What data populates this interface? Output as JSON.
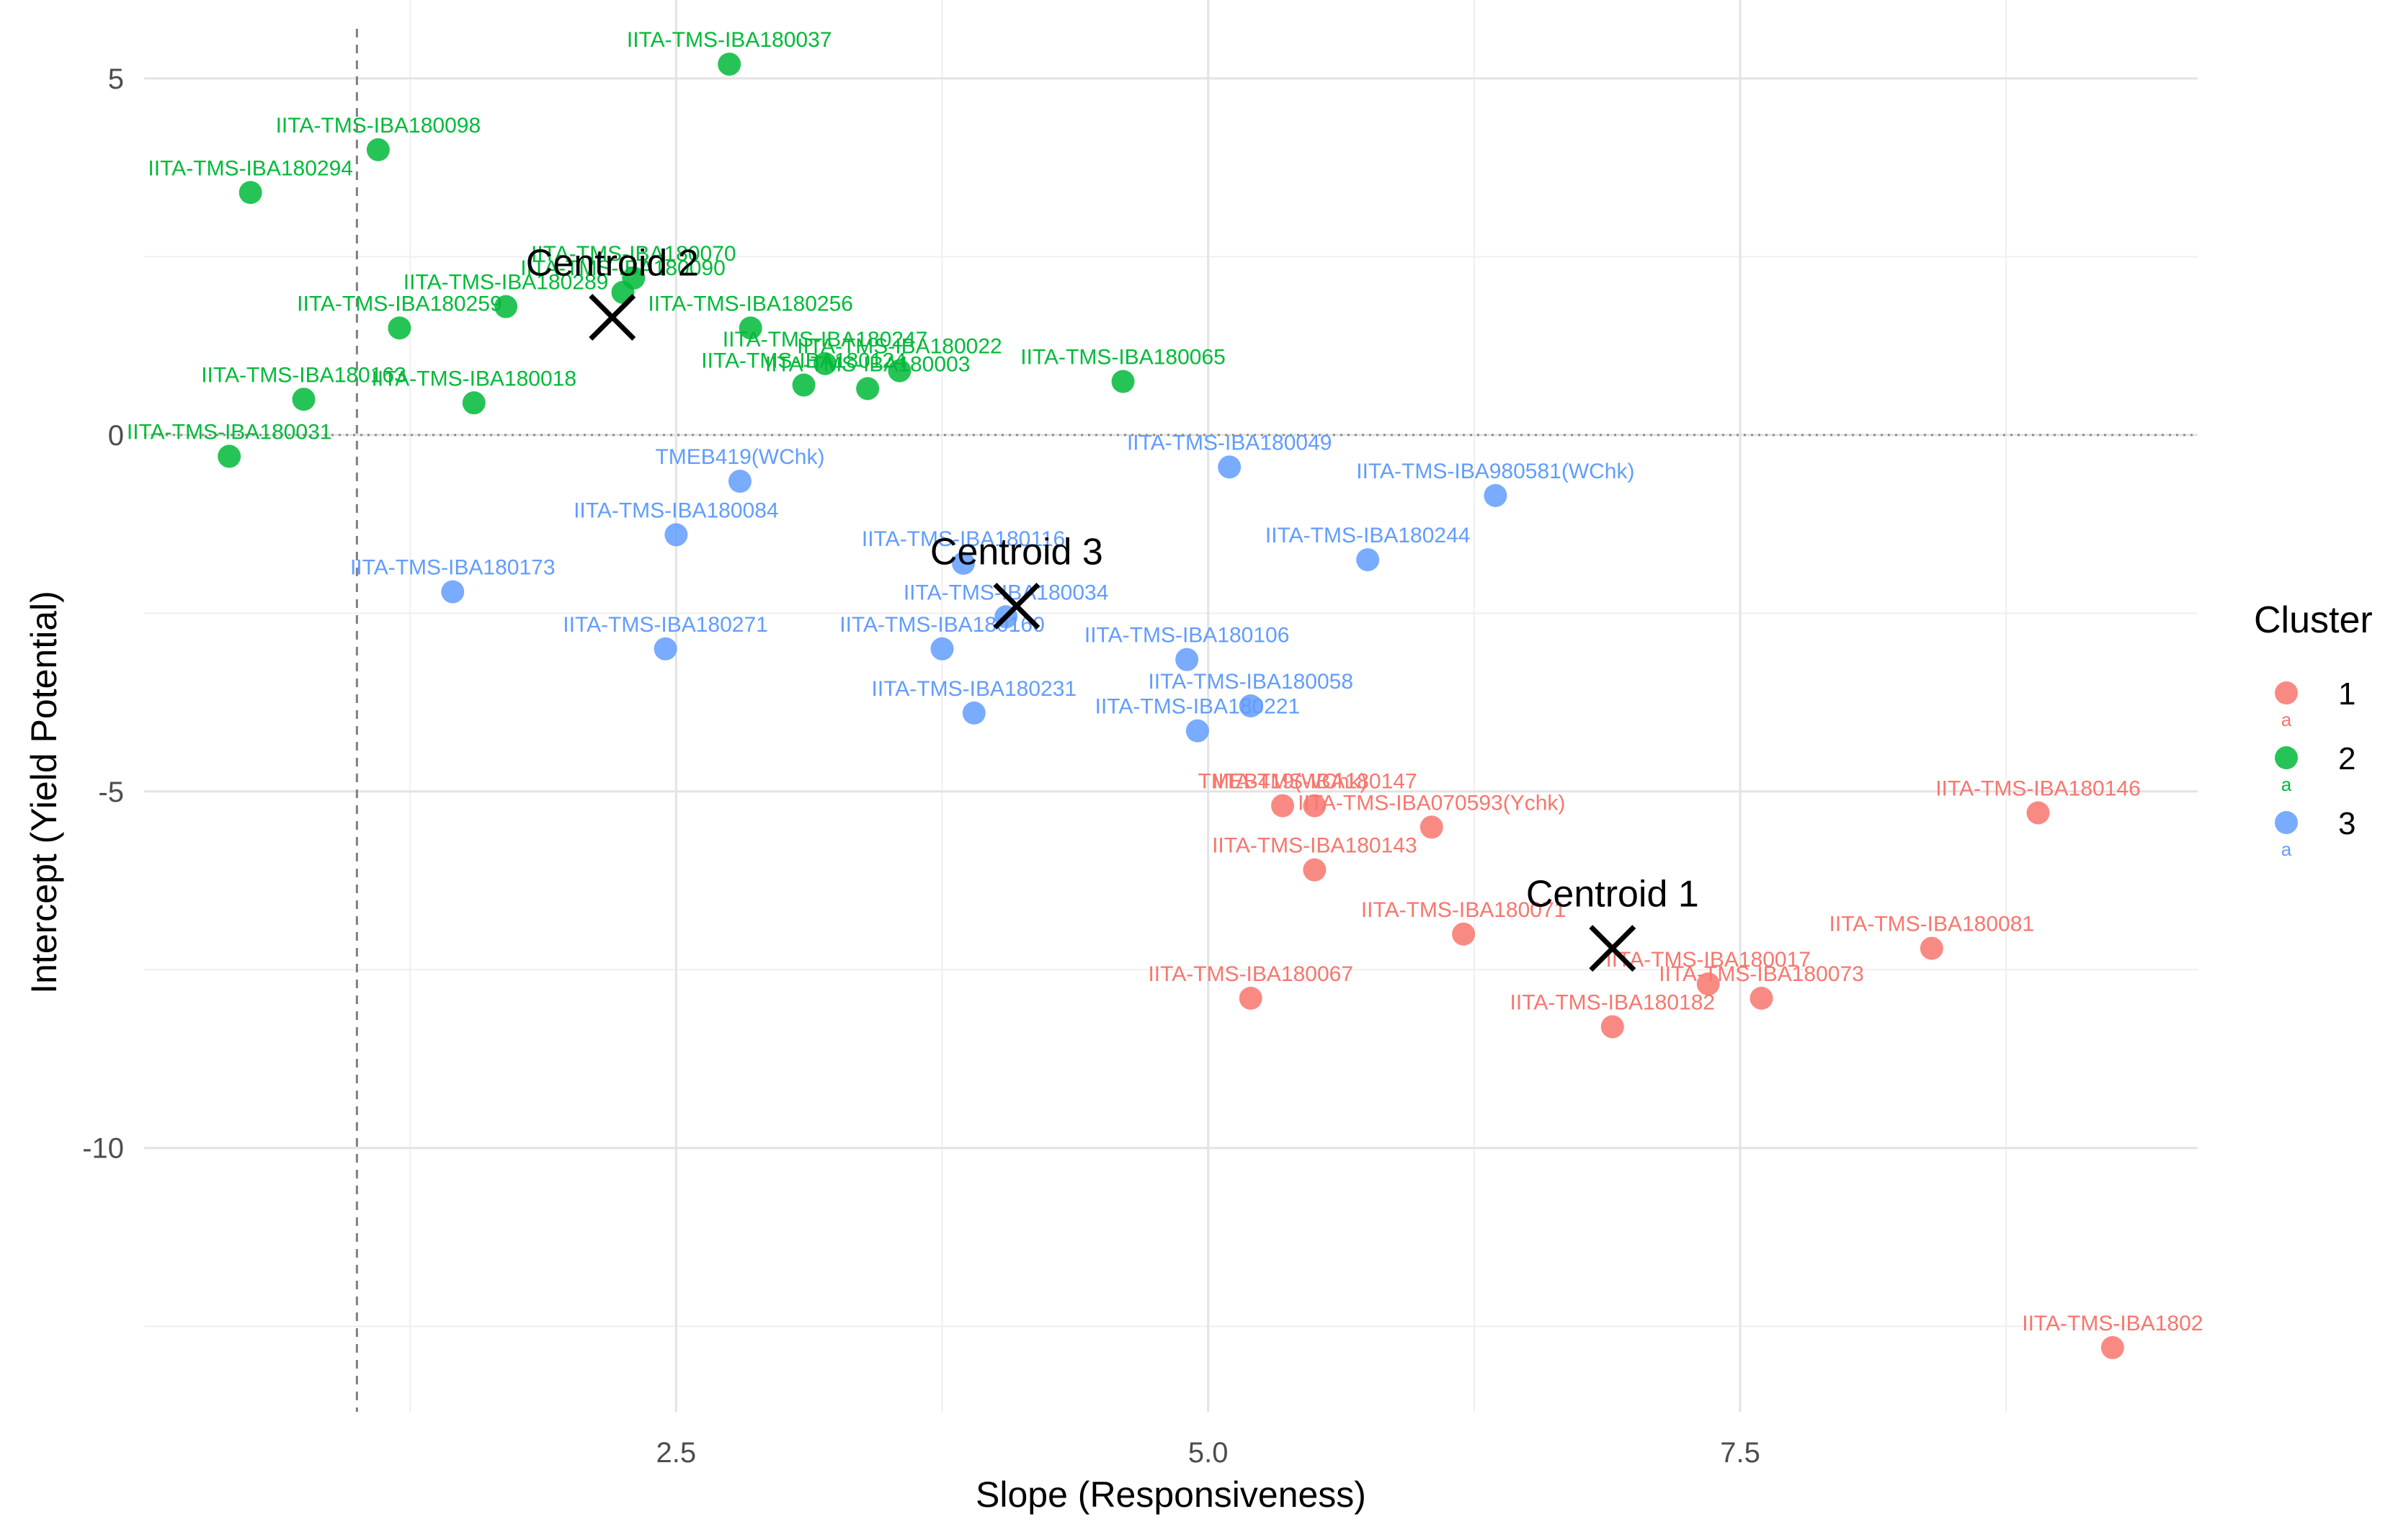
{
  "chart_data": {
    "type": "scatter",
    "xlabel": "Slope (Responsiveness)",
    "ylabel": "Intercept (Yield Potential)",
    "xlim": [
      0.0,
      9.65
    ],
    "ylim": [
      -13.7,
      6.1
    ],
    "x_ticks": [
      2.5,
      5.0,
      7.5
    ],
    "x_tick_labels": [
      "2.5",
      "5.0",
      "7.5"
    ],
    "y_ticks": [
      5,
      0,
      -5,
      -10
    ],
    "y_tick_labels": [
      "5",
      "0",
      "-5",
      "-10"
    ],
    "reference_lines": {
      "vertical_x": 1.0,
      "horizontal_y": 0
    },
    "legend": {
      "title": "Cluster",
      "position": "right",
      "entries": [
        {
          "label": "1",
          "color": "#F8766D"
        },
        {
          "label": "2",
          "color": "#00BA38"
        },
        {
          "label": "3",
          "color": "#619CFF"
        }
      ],
      "key_glyph_text": "a"
    },
    "series": [
      {
        "name": "1",
        "color": "#F8766D",
        "points": [
          {
            "label": "IITA-TMS-IBA180146",
            "x": 8.9,
            "y": -5.3
          },
          {
            "label": "IITA-TMS-IBA180147",
            "x": 5.5,
            "y": -5.2
          },
          {
            "label": "TMEB419(WChk)",
            "x": 5.35,
            "y": -5.2
          },
          {
            "label": "IITA-TMS-IBA070593(Ychk)",
            "x": 6.05,
            "y": -5.5
          },
          {
            "label": "IITA-TMS-IBA180143",
            "x": 5.5,
            "y": -6.1
          },
          {
            "label": "IITA-TMS-IBA180071",
            "x": 6.2,
            "y": -7.0
          },
          {
            "label": "IITA-TMS-IBA180081",
            "x": 8.4,
            "y": -7.2
          },
          {
            "label": "IITA-TMS-IBA180067",
            "x": 5.2,
            "y": -7.9
          },
          {
            "label": "IITA-TMS-IBA180017",
            "x": 7.35,
            "y": -7.7
          },
          {
            "label": "IITA-TMS-IBA180073",
            "x": 7.6,
            "y": -7.9
          },
          {
            "label": "IITA-TMS-IBA180182",
            "x": 6.9,
            "y": -8.3
          },
          {
            "label": "IITA-TMS-IBA1802",
            "x": 9.25,
            "y": -12.8
          }
        ]
      },
      {
        "name": "2",
        "color": "#00BA38",
        "points": [
          {
            "label": "IITA-TMS-IBA180037",
            "x": 2.75,
            "y": 5.2
          },
          {
            "label": "IITA-TMS-IBA180098",
            "x": 1.1,
            "y": 4.0
          },
          {
            "label": "IITA-TMS-IBA180294",
            "x": 0.5,
            "y": 3.4
          },
          {
            "label": "IITA-TMS-IBA180070",
            "x": 2.3,
            "y": 2.2
          },
          {
            "label": "IITA-TMS-IBA180090",
            "x": 2.25,
            "y": 2.0
          },
          {
            "label": "IITA-TMS-IBA180289",
            "x": 1.7,
            "y": 1.8
          },
          {
            "label": "IITA-TMS-IBA180259",
            "x": 1.2,
            "y": 1.5
          },
          {
            "label": "IITA-TMS-IBA180256",
            "x": 2.85,
            "y": 1.5
          },
          {
            "label": "IITA-TMS-IBA180247",
            "x": 3.2,
            "y": 1.0
          },
          {
            "label": "IITA-TMS-IBA180022",
            "x": 3.55,
            "y": 0.9
          },
          {
            "label": "IITA-TMS-IBA180124",
            "x": 3.1,
            "y": 0.7
          },
          {
            "label": "IITA-TMS-IBA180003",
            "x": 3.4,
            "y": 0.65
          },
          {
            "label": "IITA-TMS-IBA180065",
            "x": 4.6,
            "y": 0.75
          },
          {
            "label": "IITA-TMS-IBA180163",
            "x": 0.75,
            "y": 0.5
          },
          {
            "label": "IITA-TMS-IBA180018",
            "x": 1.55,
            "y": 0.45
          },
          {
            "label": "IITA-TMS-IBA180031",
            "x": 0.4,
            "y": -0.3
          }
        ]
      },
      {
        "name": "3",
        "color": "#619CFF",
        "points": [
          {
            "label": "IITA-TMS-IBA180049",
            "x": 5.1,
            "y": -0.45
          },
          {
            "label": "IITA-TMS-IBA980581(WChk)",
            "x": 6.35,
            "y": -0.85
          },
          {
            "label": "TMEB419(WChk)",
            "x": 2.8,
            "y": -0.65
          },
          {
            "label": "IITA-TMS-IBA180084",
            "x": 2.5,
            "y": -1.4
          },
          {
            "label": "IITA-TMS-IBA180244",
            "x": 5.75,
            "y": -1.75
          },
          {
            "label": "IITA-TMS-IBA180173",
            "x": 1.45,
            "y": -2.2
          },
          {
            "label": "IITA-TMS-IBA180116",
            "x": 3.85,
            "y": -1.8
          },
          {
            "label": "IITA-TMS-IBA180034",
            "x": 4.05,
            "y": -2.55
          },
          {
            "label": "IITA-TMS-IBA180271",
            "x": 2.45,
            "y": -3.0
          },
          {
            "label": "IITA-TMS-IBA180160",
            "x": 3.75,
            "y": -3.0
          },
          {
            "label": "IITA-TMS-IBA180106",
            "x": 4.9,
            "y": -3.15
          },
          {
            "label": "IITA-TMS-IBA180058",
            "x": 5.2,
            "y": -3.8
          },
          {
            "label": "IITA-TMS-IBA180231",
            "x": 3.9,
            "y": -3.9
          },
          {
            "label": "IITA-TMS-IBA180221",
            "x": 4.95,
            "y": -4.15
          }
        ]
      }
    ],
    "centroids": [
      {
        "label": "Centroid 1",
        "x": 6.9,
        "y": -7.2
      },
      {
        "label": "Centroid 2",
        "x": 2.2,
        "y": 1.65
      },
      {
        "label": "Centroid 3",
        "x": 4.1,
        "y": -2.4
      }
    ]
  }
}
